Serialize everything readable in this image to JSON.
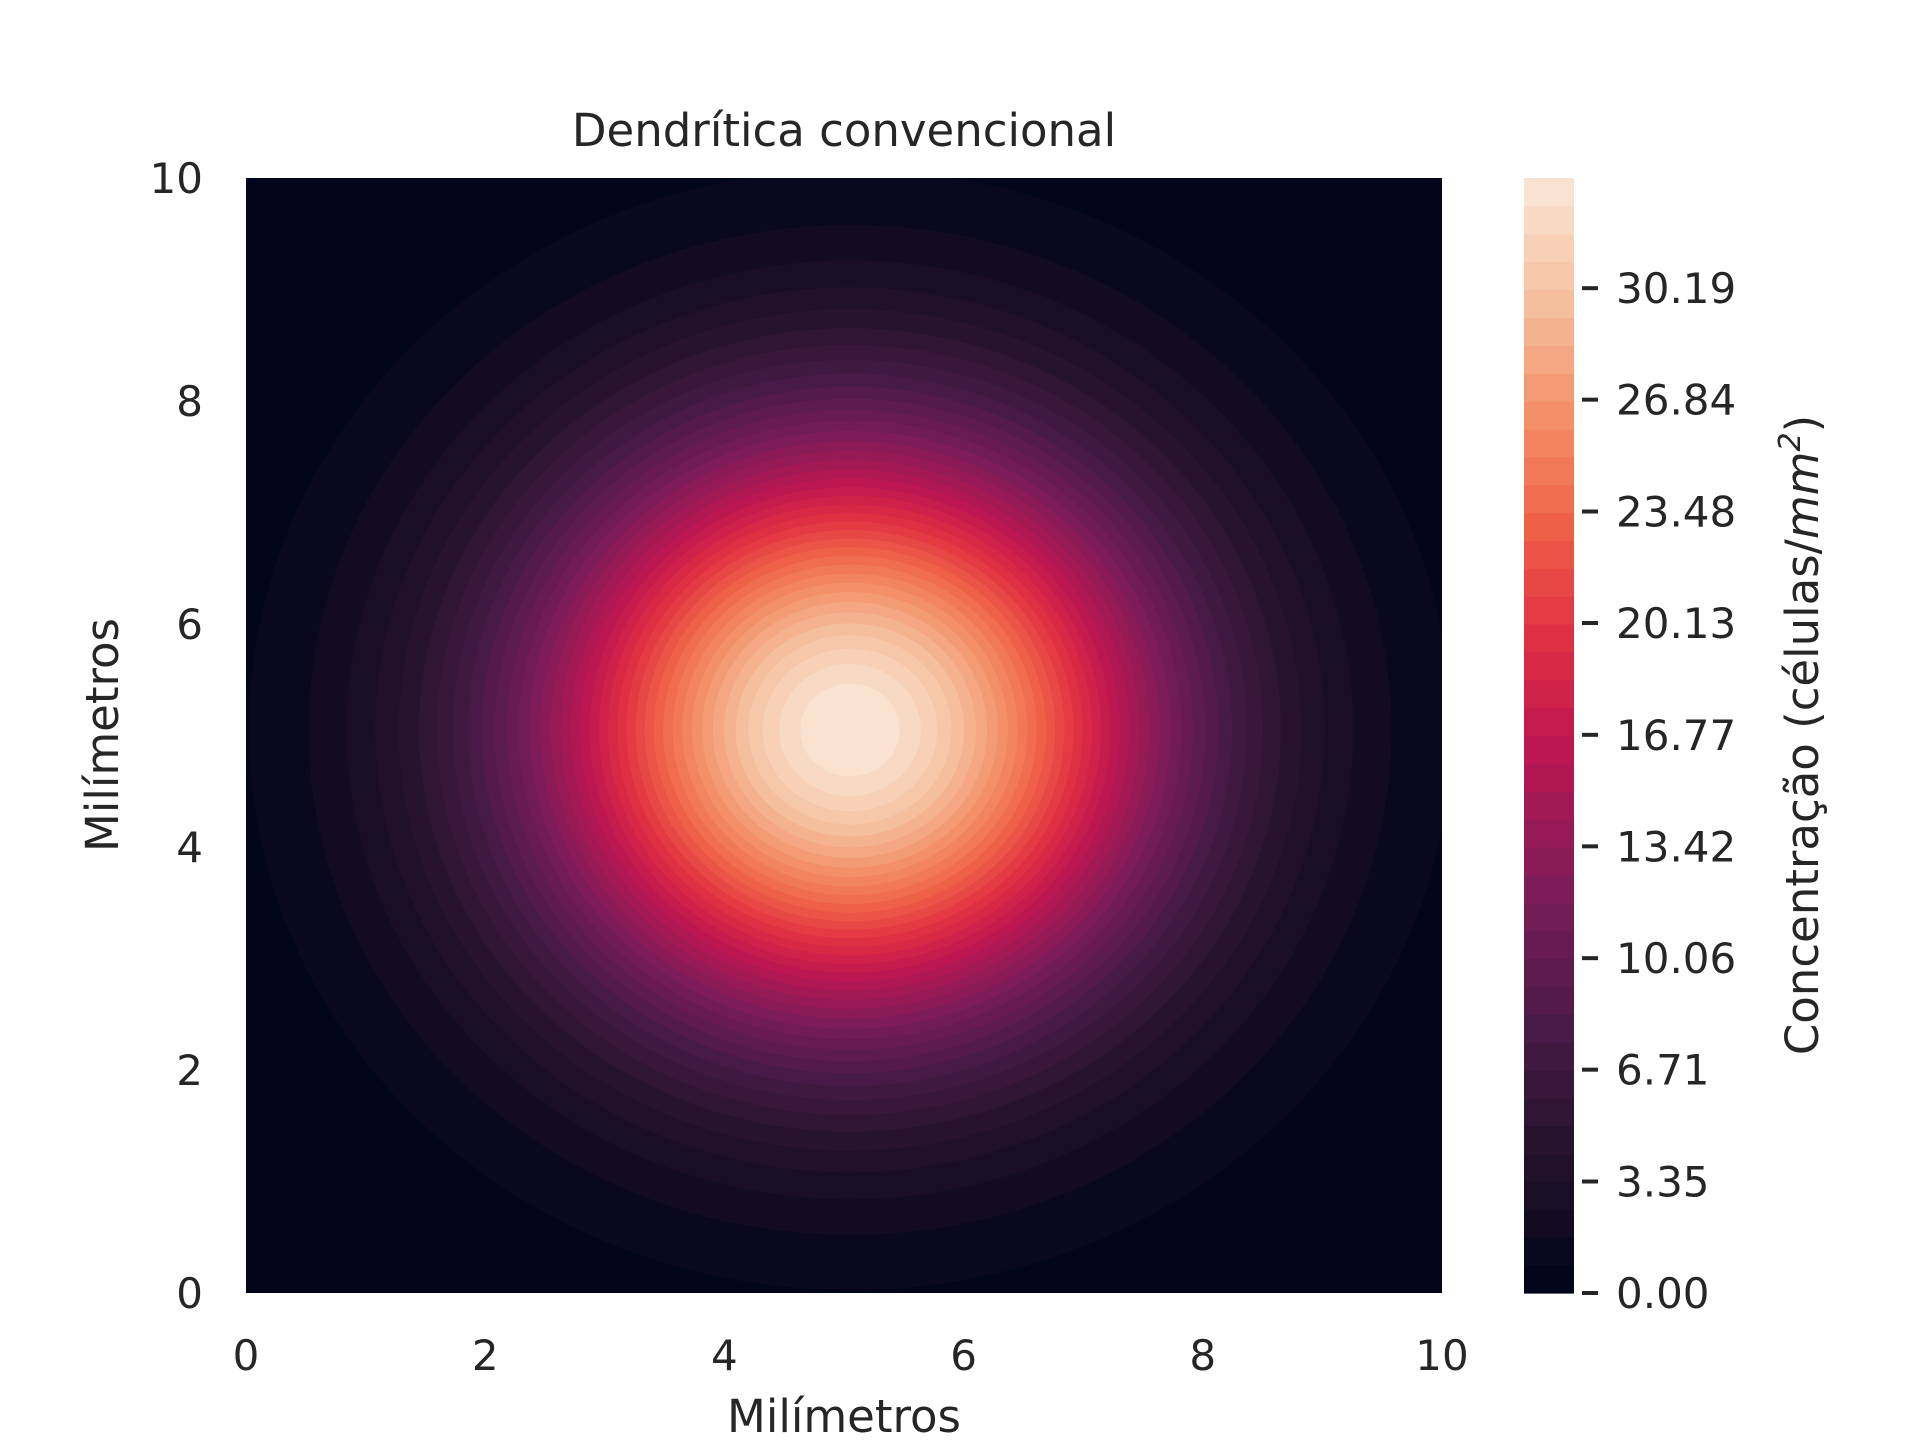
{
  "chart_data": {
    "type": "heatmap",
    "title": "Dendrítica convencional",
    "xlabel": "Milímetros",
    "ylabel": "Milímetros",
    "xlim": [
      0,
      10
    ],
    "ylim": [
      0,
      10
    ],
    "x_ticks": [
      "0",
      "2",
      "4",
      "6",
      "8",
      "10"
    ],
    "y_ticks": [
      "0",
      "2",
      "4",
      "6",
      "8",
      "10"
    ],
    "colorbar": {
      "label": "Concentração (células/mm²)",
      "label_prefix": "Concentração (células/",
      "label_unit_base": "mm",
      "label_unit_exp": "2",
      "label_suffix": ")",
      "min": 0,
      "max": 33.5,
      "ticks": [
        "0.00",
        "3.35",
        "6.71",
        "10.06",
        "13.42",
        "16.77",
        "20.13",
        "23.48",
        "26.84",
        "30.19"
      ],
      "colormap": "rocket"
    },
    "field": {
      "description_of_peak": "single gaussian blob",
      "peak_x": 5.05,
      "peak_y": 5.05,
      "peak_value": 33.5,
      "sigma_x": 1.85,
      "sigma_y": 1.85
    },
    "levels": 40,
    "grid": false
  }
}
